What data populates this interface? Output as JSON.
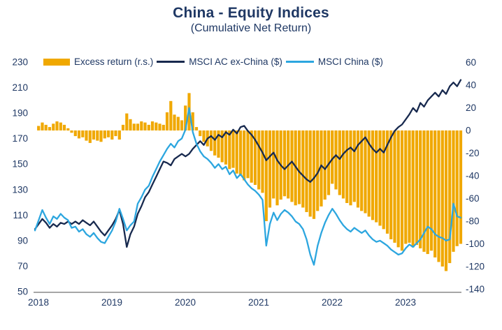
{
  "title": {
    "text": "China - Equity Indices",
    "subtitle": "(Cumulative Net Return)"
  },
  "colors": {
    "title_text": "#1F3864",
    "axis_text": "#1F3864",
    "axis_line": "#A6A6A6",
    "background": "#FFFFFF"
  },
  "chart_data": {
    "type": "combo: area bars (right axis) + 2 lines (left axis)",
    "x_start": 2018.0,
    "x_step_years": 0.05,
    "x_ticks": [
      "2018",
      "2019",
      "2020",
      "2021",
      "2022",
      "2023"
    ],
    "left_axis": {
      "min": 50,
      "max": 230,
      "step": 20,
      "ticks": [
        "230",
        "210",
        "190",
        "170",
        "150",
        "130",
        "110",
        "90",
        "70",
        "50"
      ]
    },
    "right_axis": {
      "min": -140,
      "max": 60,
      "step": 20,
      "ticks": [
        "60",
        "40",
        "20",
        "0",
        "-20",
        "-40",
        "-60",
        "-80",
        "-100",
        "-120",
        "-140"
      ]
    },
    "grid": "off",
    "legend_position": "top",
    "series": [
      {
        "name": "Excess return (r.s.)",
        "axis": "right",
        "render": "bars",
        "color": "#F0A800",
        "values": [
          0,
          4,
          7,
          5,
          3,
          6,
          8,
          7,
          5,
          2,
          -2,
          -5,
          -7,
          -6,
          -9,
          -11,
          -8,
          -9,
          -10,
          -7,
          -6,
          -8,
          -5,
          -8,
          5,
          15,
          10,
          6,
          6,
          8,
          7,
          5,
          8,
          7,
          6,
          5,
          16,
          26,
          14,
          12,
          9,
          22,
          33,
          16,
          3,
          -5,
          -10,
          -14,
          -18,
          -22,
          -24,
          -28,
          -30,
          -34,
          -33,
          -38,
          -40,
          -44,
          -42,
          -46,
          -48,
          -52,
          -55,
          -80,
          -68,
          -60,
          -66,
          -61,
          -58,
          -60,
          -63,
          -66,
          -65,
          -68,
          -72,
          -76,
          -78,
          -71,
          -67,
          -61,
          -57,
          -47,
          -52,
          -57,
          -60,
          -64,
          -66,
          -63,
          -68,
          -71,
          -73,
          -76,
          -79,
          -81,
          -84,
          -87,
          -91,
          -96,
          -99,
          -103,
          -106,
          -100,
          -99,
          -103,
          -101,
          -104,
          -107,
          -109,
          -106,
          -112,
          -116,
          -120,
          -124,
          -117,
          -107,
          -102,
          -100
        ]
      },
      {
        "name": "MSCI AC ex-China ($)",
        "axis": "left",
        "render": "line",
        "color": "#17294E",
        "values": [
          99,
          103,
          107,
          104,
          100,
          103,
          101,
          104,
          103,
          105,
          103,
          105,
          103,
          106,
          104,
          102,
          105,
          101,
          97,
          94,
          98,
          102,
          107,
          114,
          103,
          85,
          95,
          101,
          111,
          117,
          124,
          128,
          134,
          140,
          146,
          152,
          151,
          149,
          154,
          156,
          158,
          156,
          158,
          162,
          165,
          168,
          165,
          170,
          172,
          169,
          173,
          171,
          175,
          173,
          177,
          174,
          179,
          180,
          176,
          173,
          169,
          164,
          159,
          153,
          156,
          159,
          153,
          149,
          146,
          149,
          152,
          148,
          144,
          141,
          138,
          136,
          139,
          143,
          149,
          146,
          150,
          154,
          157,
          154,
          158,
          161,
          163,
          160,
          165,
          168,
          171,
          166,
          162,
          159,
          162,
          159,
          165,
          171,
          176,
          179,
          181,
          185,
          189,
          194,
          191,
          198,
          195,
          200,
          203,
          206,
          203,
          208,
          205,
          211,
          214,
          211,
          216
        ]
      },
      {
        "name": "MSCI China ($)",
        "axis": "left",
        "render": "line",
        "color": "#2CA6DF",
        "values": [
          98,
          106,
          114,
          108,
          103,
          109,
          107,
          111,
          108,
          106,
          100,
          101,
          97,
          99,
          95,
          93,
          96,
          92,
          89,
          88,
          93,
          98,
          105,
          115,
          107,
          98,
          102,
          105,
          119,
          124,
          130,
          133,
          140,
          146,
          152,
          157,
          162,
          166,
          163,
          168,
          170,
          177,
          194,
          175,
          166,
          160,
          156,
          154,
          151,
          147,
          150,
          146,
          148,
          142,
          145,
          139,
          142,
          138,
          134,
          131,
          129,
          126,
          122,
          86,
          103,
          112,
          106,
          111,
          114,
          112,
          109,
          105,
          103,
          99,
          91,
          79,
          71,
          86,
          96,
          104,
          110,
          115,
          111,
          106,
          102,
          99,
          97,
          100,
          98,
          96,
          98,
          94,
          91,
          89,
          90,
          88,
          86,
          83,
          81,
          79,
          80,
          84,
          87,
          85,
          88,
          91,
          96,
          101,
          99,
          95,
          93,
          92,
          90,
          91,
          119,
          109,
          108
        ]
      }
    ]
  }
}
